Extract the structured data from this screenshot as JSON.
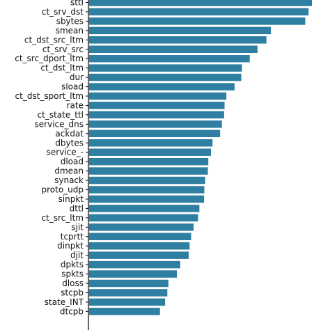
{
  "chart_data": {
    "type": "bar",
    "orientation": "horizontal",
    "grid": false,
    "title": "",
    "xlabel": "",
    "ylabel": "",
    "bar_color": "#2e7fa1",
    "xlim": [
      0,
      1
    ],
    "categories": [
      "sttl",
      "ct_srv_dst",
      "sbytes",
      "smean",
      "ct_dst_src_ltm",
      "ct_srv_src",
      "ct_src_dport_ltm",
      "ct_dst_ltm",
      "dur",
      "sload",
      "ct_dst_sport_ltm",
      "rate",
      "ct_state_ttl",
      "service_dns",
      "ackdat",
      "dbytes",
      "service_-",
      "dload",
      "dmean",
      "synack",
      "proto_udp",
      "sinpkt",
      "dttl",
      "ct_src_ltm",
      "sjit",
      "tcprtt",
      "dinpkt",
      "djit",
      "dpkts",
      "spkts",
      "dloss",
      "stcpb",
      "state_INT",
      "dtcpb"
    ],
    "values": [
      1.0,
      0.985,
      0.97,
      0.816,
      0.796,
      0.756,
      0.721,
      0.686,
      0.683,
      0.653,
      0.616,
      0.608,
      0.606,
      0.596,
      0.588,
      0.554,
      0.547,
      0.535,
      0.533,
      0.521,
      0.517,
      0.516,
      0.495,
      0.489,
      0.469,
      0.458,
      0.451,
      0.447,
      0.409,
      0.394,
      0.356,
      0.351,
      0.341,
      0.318
    ]
  }
}
